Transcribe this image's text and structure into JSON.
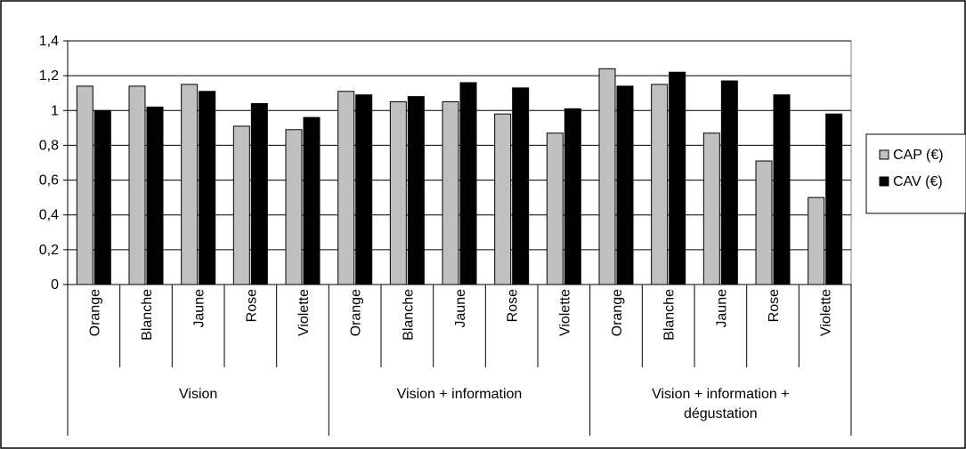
{
  "chart_data": {
    "type": "bar",
    "title": "",
    "xlabel": "",
    "ylabel": "",
    "ylim": [
      0,
      1.4
    ],
    "yticks": [
      "0",
      "0,2",
      "0,4",
      "0,6",
      "0,8",
      "1",
      "1,2",
      "1,4"
    ],
    "grid": true,
    "legend_position": "right",
    "groups": [
      {
        "label": "Vision",
        "categories": [
          "Orange",
          "Blanche",
          "Jaune",
          "Rose",
          "Violette"
        ]
      },
      {
        "label": "Vision + information",
        "categories": [
          "Orange",
          "Blanche",
          "Jaune",
          "Rose",
          "Violette"
        ]
      },
      {
        "label": "Vision + information + dégustation",
        "categories": [
          "Orange",
          "Blanche",
          "Jaune",
          "Rose",
          "Violette"
        ]
      }
    ],
    "group_label_lines": [
      [
        "Vision"
      ],
      [
        "Vision + information"
      ],
      [
        "Vision + information +",
        "dégustation"
      ]
    ],
    "series": [
      {
        "name": "CAP (€)",
        "color": "#c0c0c0",
        "values": [
          1.14,
          1.14,
          1.15,
          0.91,
          0.89,
          1.11,
          1.05,
          1.05,
          0.98,
          0.87,
          1.24,
          1.15,
          0.87,
          0.71,
          0.5
        ]
      },
      {
        "name": "CAV (€)",
        "color": "#000000",
        "values": [
          1.0,
          1.02,
          1.11,
          1.04,
          0.96,
          1.09,
          1.08,
          1.16,
          1.13,
          1.01,
          1.14,
          1.22,
          1.17,
          1.09,
          0.98
        ]
      }
    ]
  }
}
